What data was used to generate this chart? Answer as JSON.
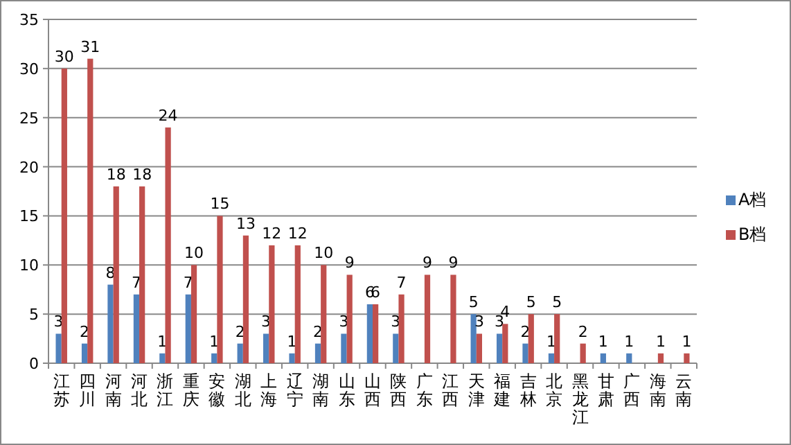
{
  "chart_data": {
    "type": "bar",
    "categories": [
      "江苏",
      "四川",
      "河南",
      "河北",
      "浙江",
      "重庆",
      "安徽",
      "湖北",
      "上海",
      "辽宁",
      "湖南",
      "山东",
      "山西",
      "陕西",
      "广东",
      "江西",
      "天津",
      "福建",
      "吉林",
      "北京",
      "黑龙江",
      "甘肃",
      "广西",
      "海南",
      "云南"
    ],
    "series": [
      {
        "name": "A档",
        "color": "#4f81bd",
        "values": [
          3,
          2,
          8,
          7,
          1,
          7,
          1,
          2,
          3,
          1,
          2,
          3,
          6,
          3,
          null,
          null,
          5,
          3,
          2,
          1,
          null,
          1,
          1,
          null,
          null
        ]
      },
      {
        "name": "B档",
        "color": "#c0504d",
        "values": [
          30,
          31,
          18,
          18,
          24,
          10,
          15,
          13,
          12,
          12,
          10,
          9,
          6,
          7,
          9,
          9,
          3,
          4,
          5,
          5,
          2,
          null,
          null,
          1,
          1
        ]
      }
    ],
    "ylim": [
      0,
      35
    ],
    "yticks": [
      0,
      5,
      10,
      15,
      20,
      25,
      30,
      35
    ],
    "grid": "y",
    "legend": "right",
    "data_labels": true
  }
}
